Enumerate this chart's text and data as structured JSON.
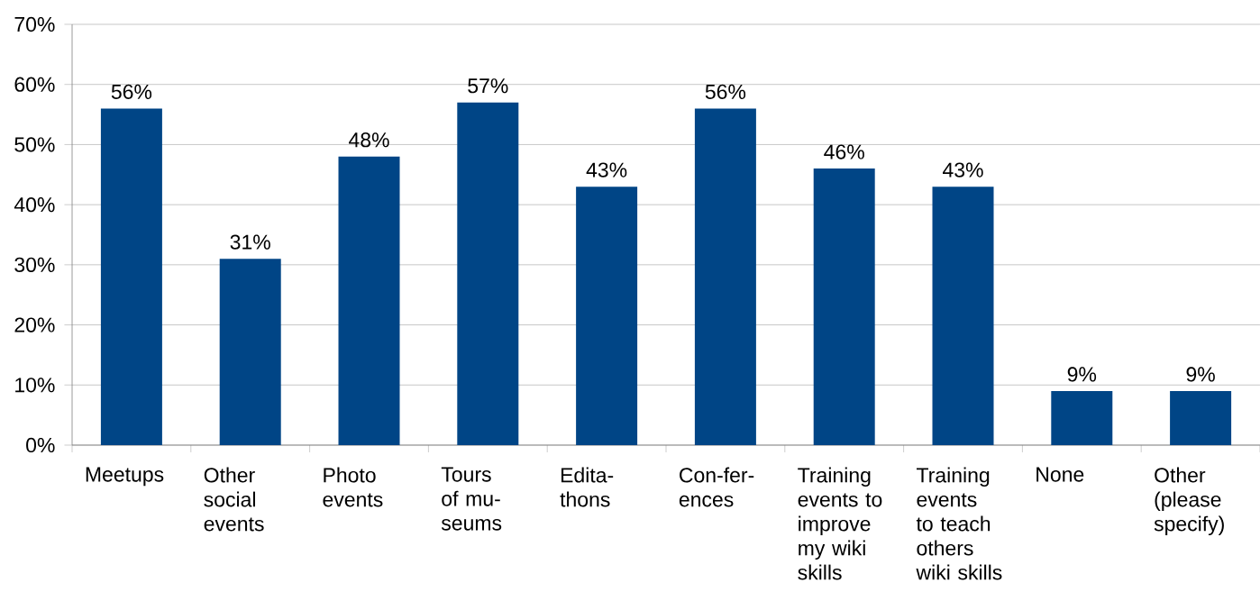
{
  "chart_data": {
    "type": "bar",
    "categories": [
      "Meetups",
      "Other social events",
      "Photo events",
      "Tours of mu-seums",
      "Edita-thons",
      "Con-fer-ences",
      "Training events to improve my wiki skills",
      "Training events to teach others wiki skills",
      "None",
      "Other (please specify)"
    ],
    "values": [
      56,
      31,
      48,
      57,
      43,
      56,
      46,
      43,
      9,
      9
    ],
    "value_labels": [
      "56%",
      "31%",
      "48%",
      "57%",
      "43%",
      "56%",
      "46%",
      "43%",
      "9%",
      "9%"
    ],
    "color": "#004586",
    "ylim": [
      0,
      70
    ],
    "yticks": [
      {
        "value": 0,
        "label": "0%"
      },
      {
        "value": 10,
        "label": "10%"
      },
      {
        "value": 20,
        "label": "20%"
      },
      {
        "value": 30,
        "label": "30%"
      },
      {
        "value": 40,
        "label": "40%"
      },
      {
        "value": 50,
        "label": "50%"
      },
      {
        "value": 60,
        "label": "60%"
      },
      {
        "value": 70,
        "label": "70%"
      }
    ],
    "grid": "y"
  }
}
